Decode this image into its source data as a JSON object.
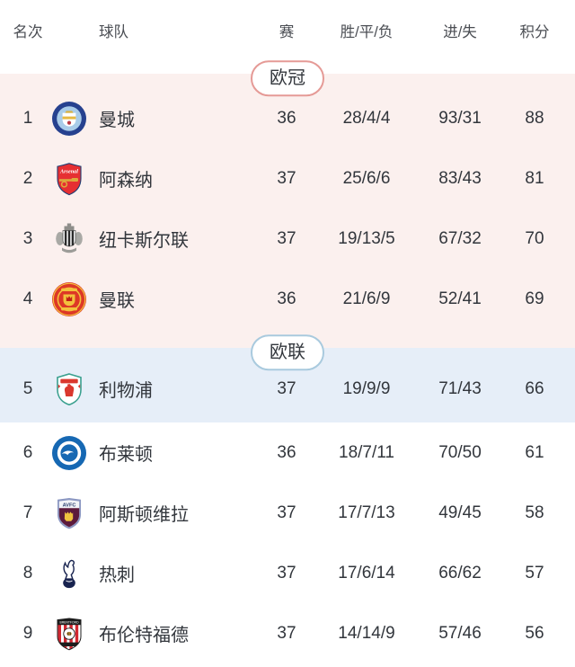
{
  "header": {
    "rank": "名次",
    "team": "球队",
    "played": "赛",
    "record": "胜/平/负",
    "goals": "进/失",
    "points": "积分"
  },
  "sections": [
    {
      "id": "ucl",
      "label": "欧冠",
      "style": "pink",
      "rows": [
        {
          "rank": "1",
          "team": "曼城",
          "crest_id": "manchester-city",
          "played": "36",
          "record": "28/4/4",
          "goals": "93/31",
          "points": "88"
        },
        {
          "rank": "2",
          "team": "阿森纳",
          "crest_id": "arsenal",
          "played": "37",
          "record": "25/6/6",
          "goals": "83/43",
          "points": "81"
        },
        {
          "rank": "3",
          "team": "纽卡斯尔联",
          "crest_id": "newcastle-united",
          "played": "37",
          "record": "19/13/5",
          "goals": "67/32",
          "points": "70"
        },
        {
          "rank": "4",
          "team": "曼联",
          "crest_id": "manchester-united",
          "played": "36",
          "record": "21/6/9",
          "goals": "52/41",
          "points": "69"
        }
      ]
    },
    {
      "id": "uel",
      "label": "欧联",
      "style": "blue",
      "rows": [
        {
          "rank": "5",
          "team": "利物浦",
          "crest_id": "liverpool",
          "played": "37",
          "record": "19/9/9",
          "goals": "71/43",
          "points": "66"
        }
      ]
    },
    {
      "id": "rest",
      "label": "",
      "style": "white",
      "rows": [
        {
          "rank": "6",
          "team": "布莱顿",
          "crest_id": "brighton",
          "played": "36",
          "record": "18/7/11",
          "goals": "70/50",
          "points": "61"
        },
        {
          "rank": "7",
          "team": "阿斯顿维拉",
          "crest_id": "aston-villa",
          "played": "37",
          "record": "17/7/13",
          "goals": "49/45",
          "points": "58"
        },
        {
          "rank": "8",
          "team": "热刺",
          "crest_id": "tottenham",
          "played": "37",
          "record": "17/6/14",
          "goals": "66/62",
          "points": "57"
        },
        {
          "rank": "9",
          "team": "布伦特福德",
          "crest_id": "brentford",
          "played": "37",
          "record": "14/14/9",
          "goals": "57/46",
          "points": "56"
        }
      ]
    }
  ],
  "colors": {
    "ucl_section_bg": "#fbf0ee",
    "uel_section_bg": "#e6eef8",
    "ucl_badge_border": "#e59a96",
    "uel_badge_border": "#a9cade",
    "row_text": "#32363c",
    "header_text": "#4a4d53"
  }
}
